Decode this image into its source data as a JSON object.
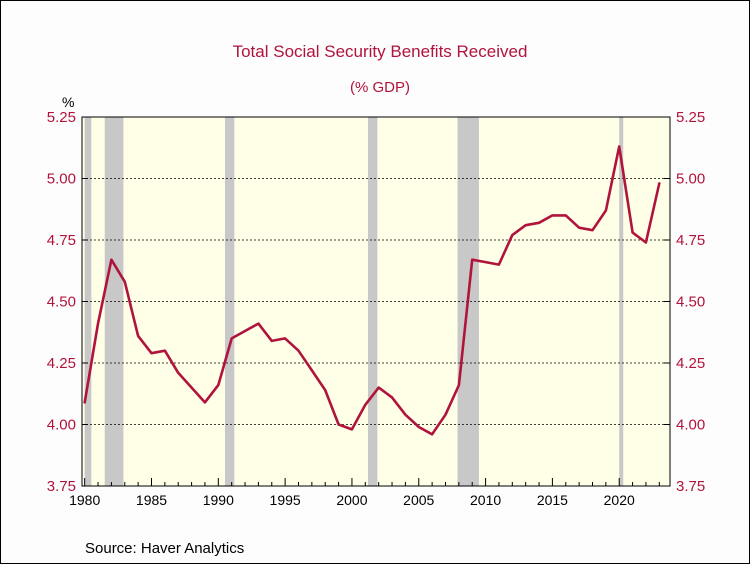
{
  "chart_data": {
    "type": "line",
    "title": "Total Social Security Benefits Received",
    "subtitle": "(% GDP)",
    "y_unit_label": "%",
    "source": "Source:  Haver Analytics",
    "xlim": [
      1979.8,
      2023.8
    ],
    "ylim": [
      3.75,
      5.25
    ],
    "x_ticks": [
      1980,
      1985,
      1990,
      1995,
      2000,
      2005,
      2010,
      2015,
      2020
    ],
    "x_tick_labels": [
      "1980",
      "1985",
      "1990",
      "1995",
      "2000",
      "2005",
      "2010",
      "2015",
      "2020"
    ],
    "y_ticks": [
      3.75,
      4.0,
      4.25,
      4.5,
      4.75,
      5.0,
      5.25
    ],
    "y_tick_labels": [
      "3.75",
      "4.00",
      "4.25",
      "4.50",
      "4.75",
      "5.00",
      "5.25"
    ],
    "grid": "horizontal dotted",
    "recessions": [
      [
        1980.0,
        1980.5
      ],
      [
        1981.5,
        1982.9
      ],
      [
        1990.5,
        1991.2
      ],
      [
        2001.2,
        2001.9
      ],
      [
        2007.9,
        2009.5
      ],
      [
        2020.0,
        2020.3
      ]
    ],
    "series": [
      {
        "color": "#b0143c",
        "x": [
          1980,
          1981,
          1982,
          1983,
          1984,
          1985,
          1986,
          1987,
          1988,
          1989,
          1990,
          1991,
          1992,
          1993,
          1994,
          1995,
          1996,
          1997,
          1998,
          1999,
          2000,
          2001,
          2002,
          2003,
          2004,
          2005,
          2006,
          2007,
          2008,
          2009,
          2010,
          2011,
          2012,
          2013,
          2014,
          2015,
          2016,
          2017,
          2018,
          2019,
          2020,
          2021,
          2022,
          2023
        ],
        "y": [
          4.09,
          4.41,
          4.67,
          4.58,
          4.36,
          4.29,
          4.3,
          4.21,
          4.15,
          4.09,
          4.16,
          4.35,
          4.38,
          4.41,
          4.34,
          4.35,
          4.3,
          4.22,
          4.14,
          4.0,
          3.98,
          4.08,
          4.15,
          4.11,
          4.04,
          3.99,
          3.96,
          4.04,
          4.16,
          4.67,
          4.66,
          4.65,
          4.77,
          4.81,
          4.82,
          4.85,
          4.85,
          4.8,
          4.79,
          4.87,
          5.13,
          4.78,
          4.74,
          4.98
        ]
      }
    ]
  },
  "colors": {
    "title": "#b0143c",
    "axis_labels": "#b0143c",
    "plot_background": "#ffffe8",
    "recession_band": "#c8c8c8",
    "series": "#b0143c"
  }
}
